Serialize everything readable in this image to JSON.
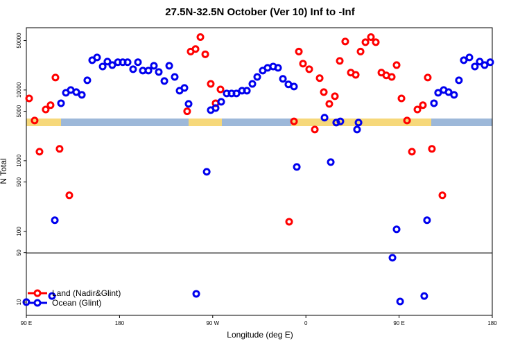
{
  "chart_data": {
    "type": "scatter",
    "title": "27.5N-32.5N October (Ver 10)   Inf to -Inf",
    "x_label": "Longitude (deg E)",
    "y_label": "N Total",
    "log_y": true,
    "legend": "bottom-left",
    "xlim": [
      90,
      540
    ],
    "xticks": [
      {
        "value": 90,
        "label": "90 E"
      },
      {
        "value": 180,
        "label": "180"
      },
      {
        "value": 270,
        "label": "90 W"
      },
      {
        "value": 360,
        "label": "0"
      },
      {
        "value": 450,
        "label": "90 E"
      },
      {
        "value": 540,
        "label": "180"
      }
    ],
    "ylim": [
      6.5,
      76000
    ],
    "yticks": [
      10,
      50,
      100,
      500,
      1000,
      5000,
      10000,
      50000
    ],
    "series": [
      {
        "name": "Land (Nadir&Glint)",
        "color": "#ff0000",
        "x": [
          92.7,
          98.0,
          102.7,
          108.7,
          113.4,
          118.1,
          122.1,
          131.5,
          245.3,
          248.7,
          253.4,
          258.1,
          262.8,
          268.1,
          272.8,
          277.5,
          343.8,
          348.5,
          353.2,
          357.2,
          363.2,
          368.6,
          373.3,
          377.3,
          382.6,
          388.0,
          392.7,
          398.0,
          403.4,
          408.1,
          412.8,
          417.5,
          422.8,
          427.5,
          432.9,
          437.6,
          442.9,
          447.6,
          452.3,
          457.7,
          462.4,
          467.7,
          473.0,
          477.7,
          481.7,
          491.8
        ],
        "values": [
          7600,
          3700,
          1340,
          5300,
          6100,
          15000,
          1470,
          324,
          5000,
          35000,
          38000,
          56000,
          32000,
          12200,
          6500,
          10200,
          137,
          3600,
          35000,
          23600,
          19700,
          2760,
          14700,
          9350,
          6370,
          8160,
          25800,
          48500,
          17600,
          16400,
          35000,
          47400,
          56000,
          47400,
          17600,
          16100,
          15300,
          22500,
          7600,
          3700,
          1340,
          5300,
          6100,
          15000,
          1470,
          324
        ]
      },
      {
        "name": "Ocean (Glint)",
        "color": "#0000ee",
        "x": [
          90,
          114.8,
          117.5,
          123.5,
          128.2,
          132.9,
          138.2,
          143.6,
          148.9,
          153.6,
          158.3,
          163.7,
          168.3,
          173.0,
          178.4,
          183.1,
          187.8,
          193.1,
          197.8,
          202.5,
          207.9,
          213.2,
          217.9,
          223.3,
          228.0,
          233.3,
          238.0,
          242.7,
          246.7,
          254.1,
          264.2,
          268.1,
          272.8,
          278.2,
          283.5,
          288.2,
          292.9,
          298.3,
          303.0,
          308.3,
          313.0,
          318.3,
          323.0,
          328.4,
          333.1,
          337.8,
          343.1,
          348.5,
          351.2,
          378.0,
          384.0,
          389.3,
          393.3,
          409.4,
          410.8,
          443.6,
          447.6,
          451.0,
          474.3,
          477.0,
          483.7,
          487.7,
          493.1,
          497.8,
          503.1,
          507.8,
          512.5,
          517.9,
          523.2,
          527.9,
          532.6,
          538.0
        ],
        "values": [
          10,
          12.2,
          144,
          6500,
          9140,
          10000,
          9350,
          8530,
          13700,
          26400,
          28900,
          21500,
          25200,
          22500,
          24700,
          24700,
          24700,
          19700,
          24700,
          18800,
          18800,
          22000,
          18000,
          13400,
          22000,
          15300,
          9770,
          10700,
          6370,
          13.1,
          697,
          5200,
          5560,
          6810,
          8930,
          8930,
          8930,
          9770,
          9770,
          12200,
          15300,
          18800,
          20600,
          21500,
          20600,
          14400,
          12000,
          11200,
          817,
          4060,
          955,
          3460,
          3600,
          2760,
          3460,
          42.4,
          107,
          10.2,
          12.2,
          144,
          6500,
          9140,
          10000,
          9350,
          8530,
          13700,
          26400,
          28900,
          21500,
          25200,
          22500,
          24700
        ]
      }
    ]
  }
}
